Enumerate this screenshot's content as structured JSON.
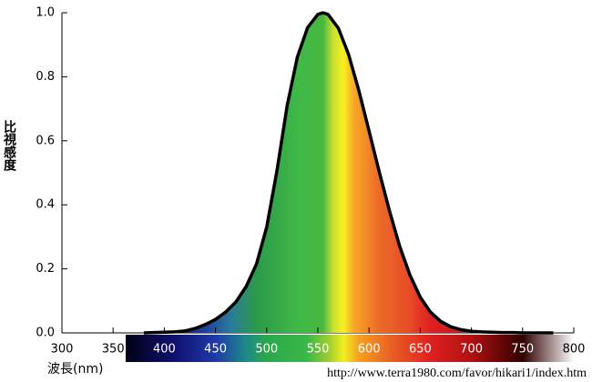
{
  "chart_data": {
    "type": "area",
    "y_label": "比視感度",
    "x_label": "波長(nm)",
    "source": "http://www.terra1980.com/favor/hikari1/index.htm",
    "x": [
      380,
      390,
      400,
      410,
      420,
      430,
      440,
      450,
      460,
      470,
      480,
      490,
      500,
      510,
      520,
      530,
      540,
      550,
      555,
      560,
      570,
      580,
      590,
      600,
      610,
      620,
      630,
      640,
      650,
      660,
      670,
      680,
      690,
      700,
      710,
      720,
      730,
      740,
      750,
      760,
      770,
      780
    ],
    "values": [
      0.0,
      0.001,
      0.002,
      0.003,
      0.006,
      0.014,
      0.026,
      0.042,
      0.065,
      0.097,
      0.145,
      0.215,
      0.33,
      0.505,
      0.71,
      0.862,
      0.954,
      0.995,
      1.0,
      0.995,
      0.952,
      0.87,
      0.757,
      0.631,
      0.503,
      0.381,
      0.27,
      0.18,
      0.112,
      0.065,
      0.036,
      0.019,
      0.01,
      0.005,
      0.003,
      0.002,
      0.001,
      0.001,
      0.0,
      0.0,
      0.0,
      0.0
    ],
    "color": "#000000",
    "xlim": [
      300,
      800
    ],
    "xticks": [
      300,
      350,
      400,
      450,
      500,
      550,
      600,
      650,
      700,
      750,
      800
    ],
    "ylim": [
      0,
      1
    ],
    "yticks": [
      {
        "value": 0,
        "label": "0.0"
      },
      0.2,
      0.4,
      0.6,
      0.8,
      {
        "value": 1,
        "label": "1.0"
      }
    ]
  }
}
